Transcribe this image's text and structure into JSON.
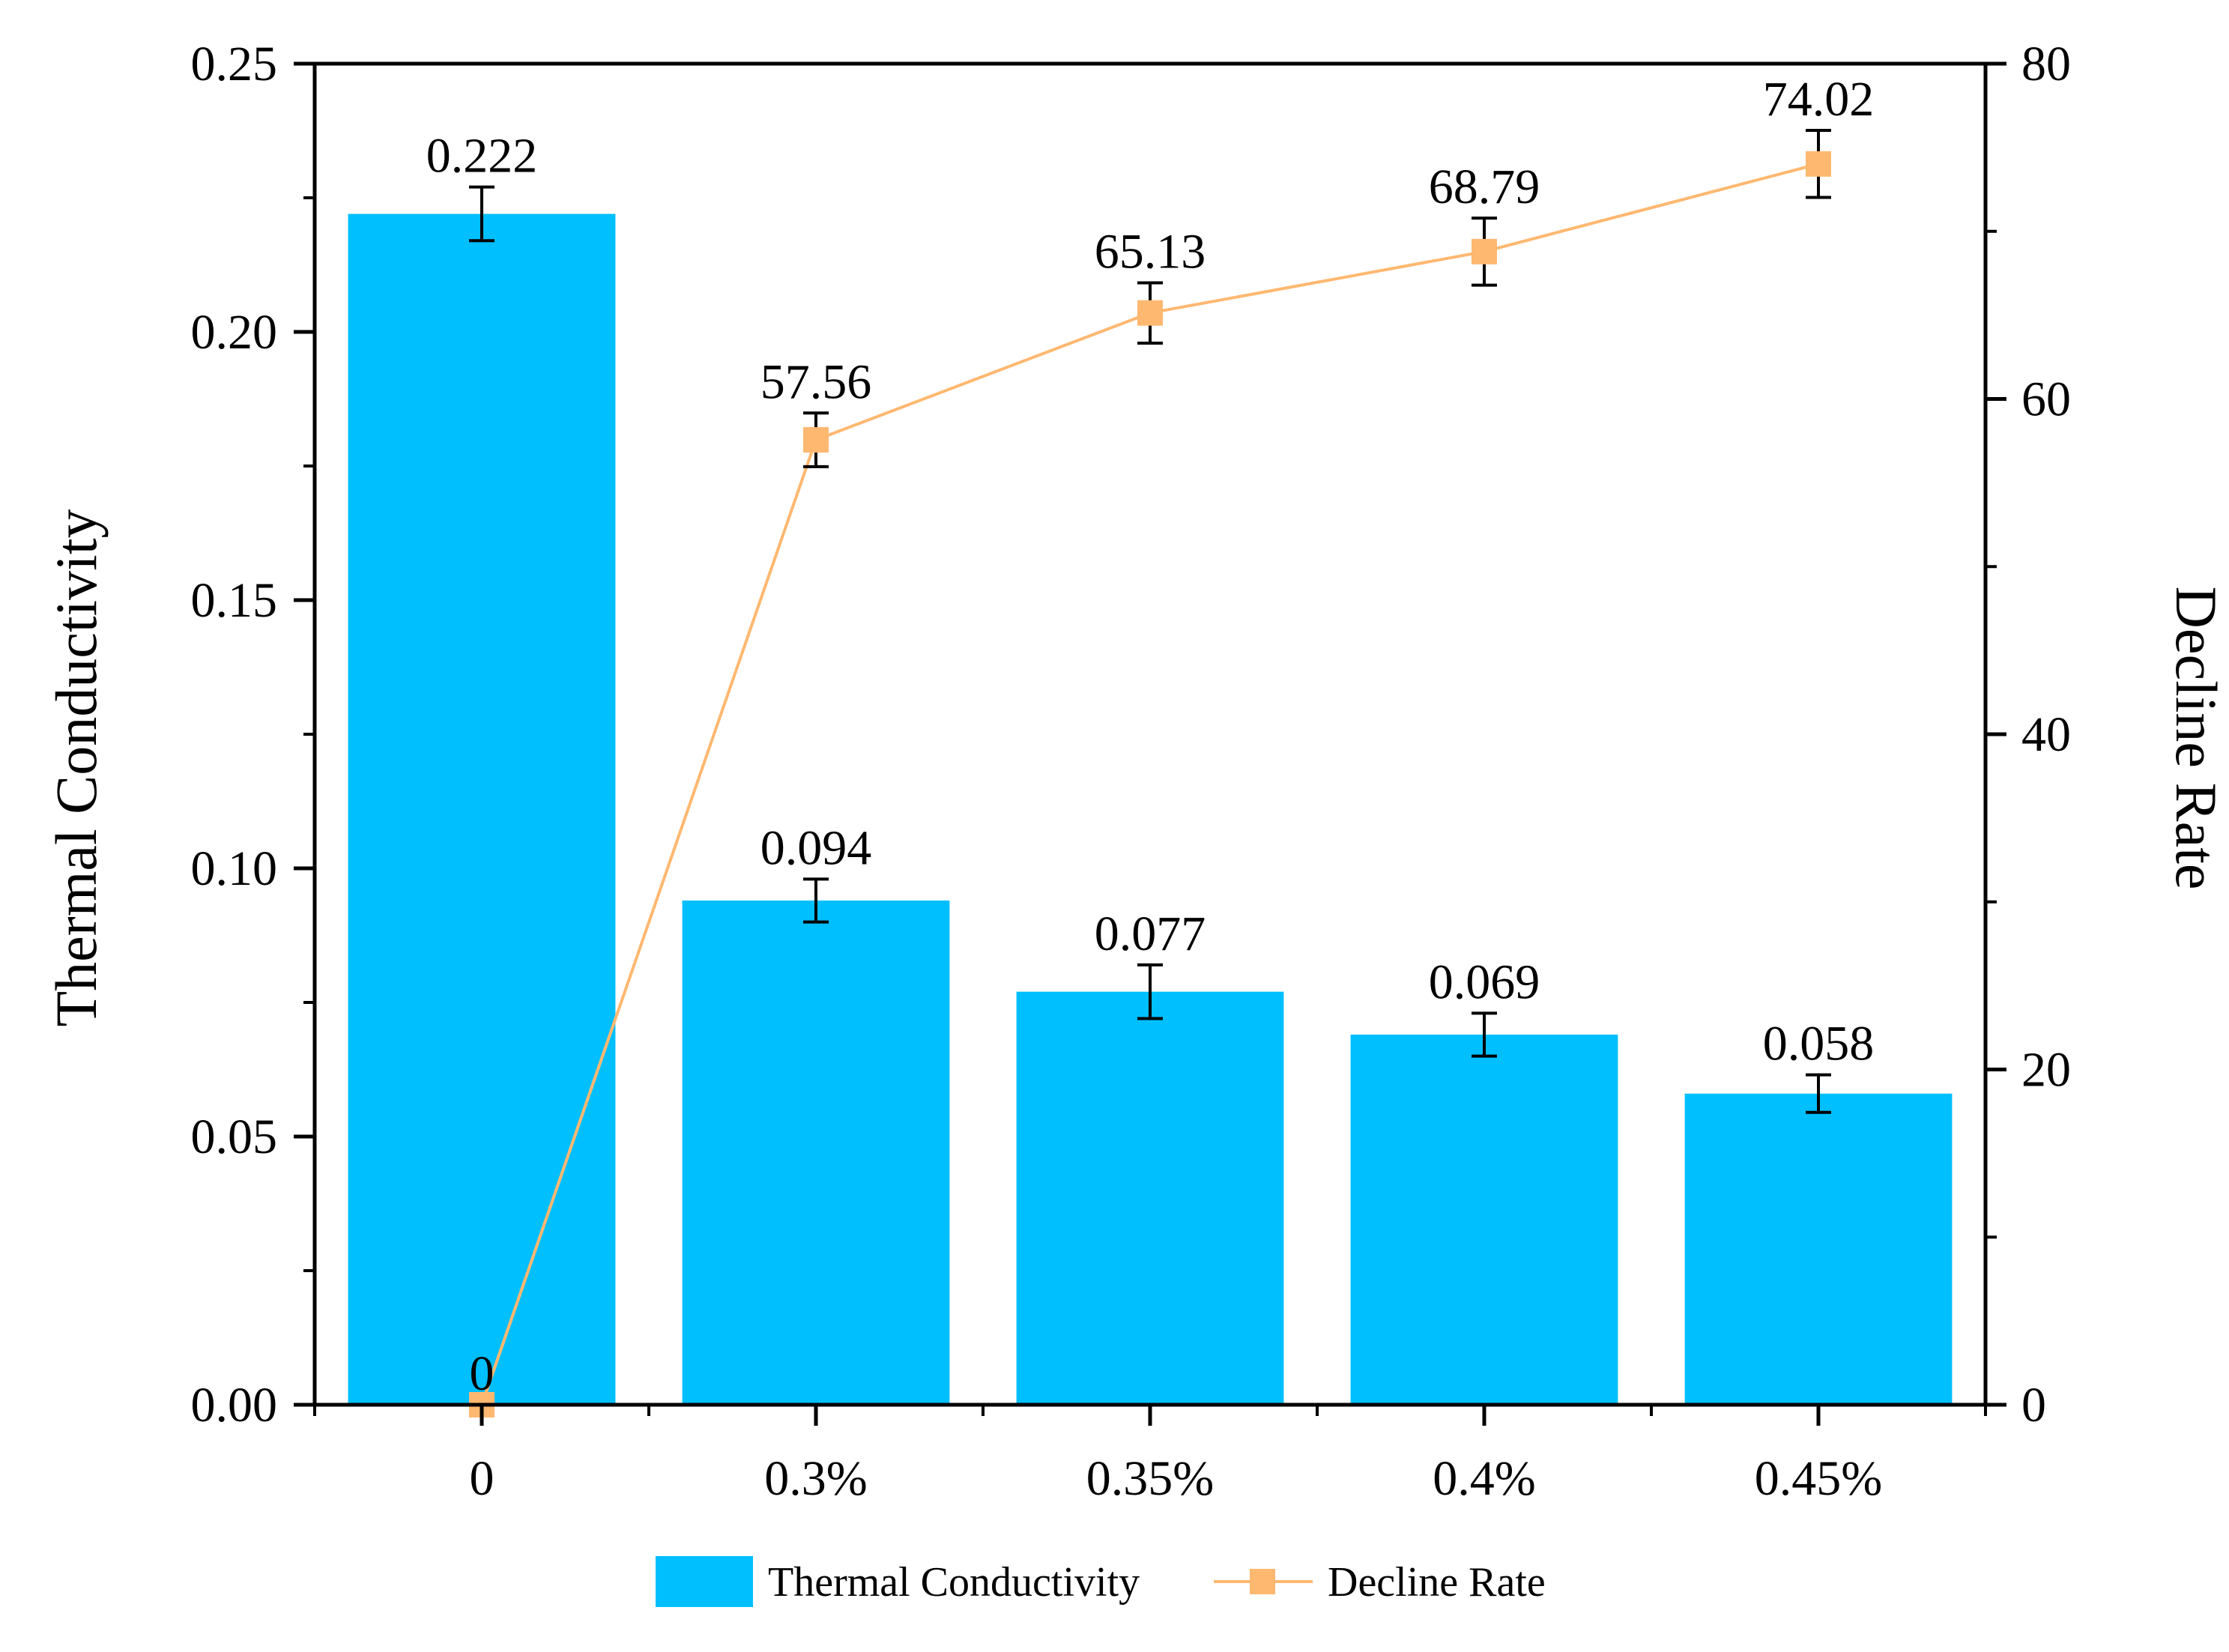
{
  "chart_data": {
    "type": "bar",
    "categories": [
      "0",
      "0.3%",
      "0.35%",
      "0.4%",
      "0.45%"
    ],
    "series": [
      {
        "name": "Thermal Conductivity",
        "kind": "bar",
        "axis": "left",
        "values": [
          0.222,
          0.094,
          0.077,
          0.069,
          0.058
        ],
        "errors": [
          0.005,
          0.004,
          0.005,
          0.004,
          0.0035
        ],
        "labels": [
          "0.222",
          "0.094",
          "0.077",
          "0.069",
          "0.058"
        ],
        "color": "#00BFFF"
      },
      {
        "name": "Decline Rate",
        "kind": "line",
        "axis": "right",
        "values": [
          0,
          57.56,
          65.13,
          68.79,
          74.02
        ],
        "errors": [
          0,
          1.6,
          1.8,
          2.0,
          2.0
        ],
        "labels": [
          "0",
          "57.56",
          "65.13",
          "68.79",
          "74.02"
        ],
        "color": "#FFB870"
      }
    ],
    "xlabel": "",
    "ylabel": "Thermal Conductivity",
    "y2label": "Decline Rate",
    "ylim": [
      0,
      0.25
    ],
    "y2lim": [
      0,
      80
    ],
    "yticks": [
      0.0,
      0.05,
      0.1,
      0.15,
      0.2,
      0.25
    ],
    "ytick_labels": [
      "0.00",
      "0.05",
      "0.10",
      "0.15",
      "0.20",
      "0.25"
    ],
    "y2ticks": [
      0,
      20,
      40,
      60,
      80
    ],
    "y2tick_labels": [
      "0",
      "20",
      "40",
      "60",
      "80"
    ],
    "legend": {
      "position": "bottom-center",
      "entries": [
        "Thermal Conductivity",
        "Decline Rate"
      ]
    },
    "grid": false
  }
}
